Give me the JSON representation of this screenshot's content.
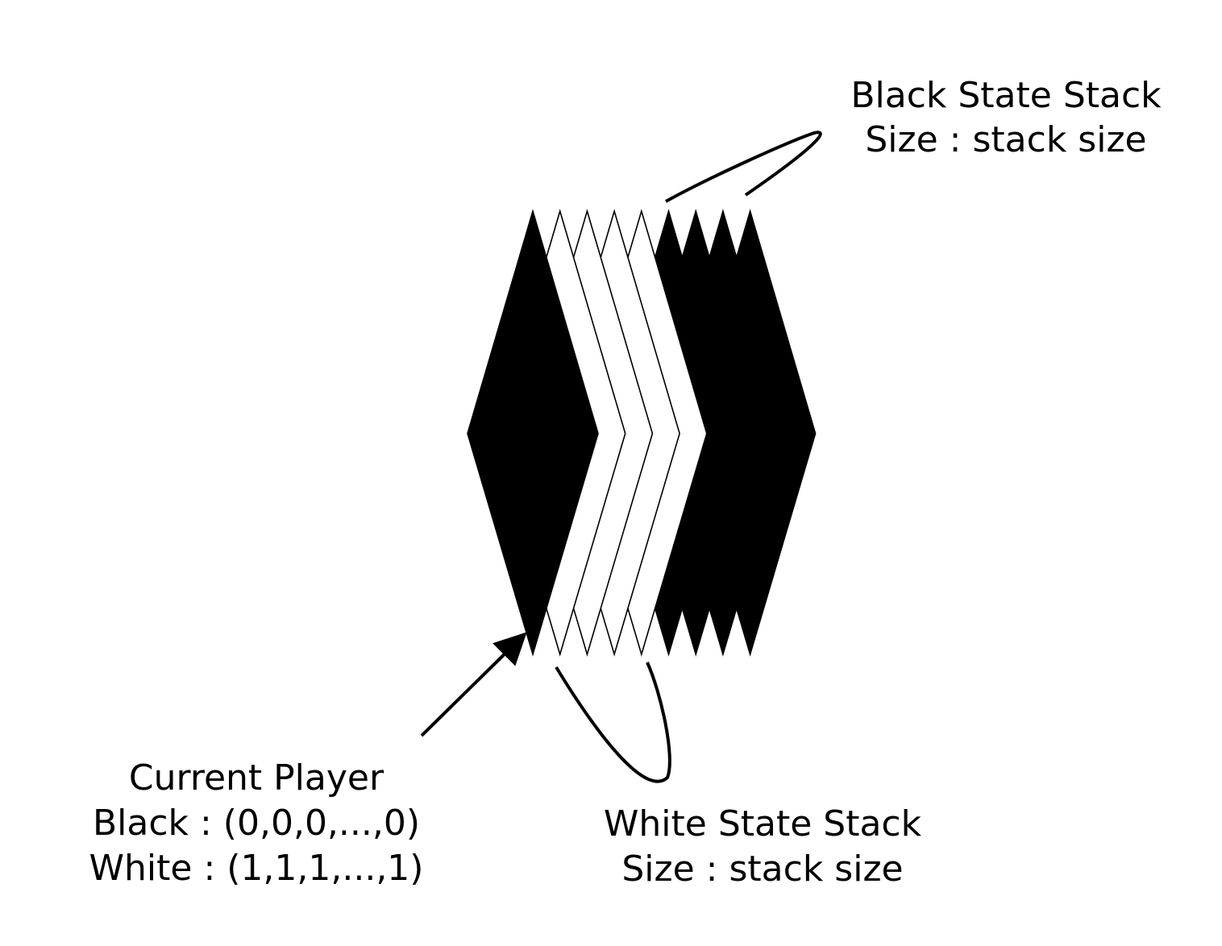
{
  "labels": {
    "black_stack": {
      "line1": "Black State Stack",
      "line2": "Size : stack size"
    },
    "white_stack": {
      "line1": "White State Stack",
      "line2": "Size : stack size"
    },
    "current_player": {
      "line1": "Current Player",
      "line2": "Black : (0,0,0,...,0)",
      "line3": "White : (1,1,1,...,1)"
    }
  },
  "planes": [
    {
      "role": "current-player",
      "fill": "#000000"
    },
    {
      "role": "white-state",
      "fill": "#ffffff"
    },
    {
      "role": "white-state",
      "fill": "#ffffff"
    },
    {
      "role": "white-state",
      "fill": "#ffffff"
    },
    {
      "role": "white-state",
      "fill": "#ffffff"
    },
    {
      "role": "black-state",
      "fill": "#000000"
    },
    {
      "role": "black-state",
      "fill": "#000000"
    },
    {
      "role": "black-state",
      "fill": "#000000"
    },
    {
      "role": "black-state",
      "fill": "#000000"
    }
  ],
  "colors": {
    "ink": "#000000",
    "paper": "#ffffff"
  }
}
